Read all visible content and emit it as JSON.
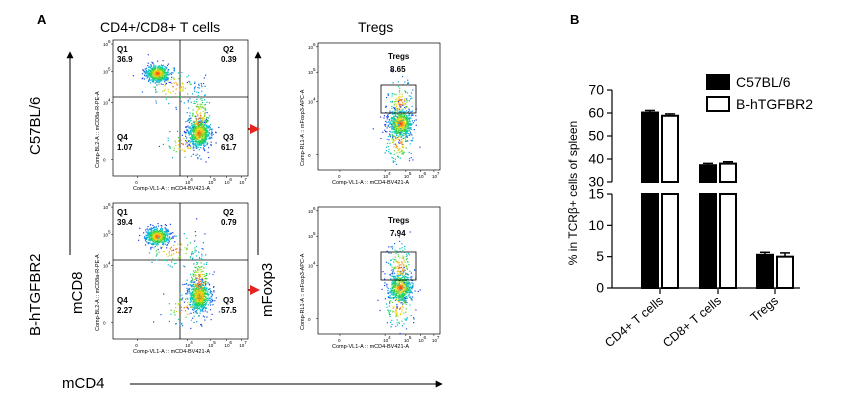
{
  "panel_a": {
    "label": "A",
    "col_title_left": "CD4+/CD8+ T cells",
    "col_title_right": "Tregs",
    "row_labels": [
      "C57BL/6",
      "B-hTGFBR2"
    ],
    "y_axis_left": "mCD8",
    "y_axis_right": "mFoxp3",
    "x_axis": "mCD4",
    "plots": [
      {
        "strain": "C57BL/6",
        "gates": {
          "Q1": "36.9",
          "Q2": "0.39",
          "Q3": "61.7",
          "Q4": "1.07"
        },
        "tregs": "8.65"
      },
      {
        "strain": "B-hTGFBR2",
        "gates": {
          "Q1": "39.4",
          "Q2": "0.79",
          "Q3": "57.5",
          "Q4": "2.27"
        },
        "tregs": "7.94"
      }
    ],
    "quad_x_label": "Comp-VL1-A :: mCD4-BV421-A",
    "quad_y_label": "Comp-BL2-A :: mCD8a-R-PE-A",
    "treg_x_label": "Comp-VL1-A :: mCD4-BV421-A",
    "treg_y_label": "Comp-RL1-A :: mFoxp3-APC-A",
    "treg_gate_name": "Tregs",
    "ticks_x": [
      "0",
      "10",
      "10",
      "10",
      "10"
    ],
    "ticks_x_exp": [
      "",
      "4",
      "5",
      "6",
      "7"
    ],
    "ticks_y": [
      "10",
      "10",
      "10",
      "0"
    ],
    "ticks_y_exp": [
      "6",
      "5",
      "4",
      ""
    ],
    "arrow_color": "#e8231f"
  },
  "chart_data": {
    "type": "bar",
    "panel_label": "B",
    "categories": [
      "CD4+ T cells",
      "CD8+ T cells",
      "Tregs"
    ],
    "series": [
      {
        "name": "C57BL/6",
        "values": [
          60.2,
          37.3,
          5.3
        ],
        "errors": [
          0.9,
          0.8,
          0.4
        ],
        "color": "#000000"
      },
      {
        "name": "B-hTGFBR2",
        "values": [
          58.8,
          38.0,
          5.0
        ],
        "errors": [
          0.8,
          0.8,
          0.6
        ],
        "color": "#ffffff"
      }
    ],
    "ylabel": "% in TCRβ+ cells of spleen",
    "y_ticks_top": [
      "30",
      "40",
      "50",
      "60",
      "70"
    ],
    "y_ticks_bottom": [
      "0",
      "5",
      "10",
      "15"
    ],
    "axis_break": [
      15,
      30
    ],
    "legend_position": "top-right"
  }
}
